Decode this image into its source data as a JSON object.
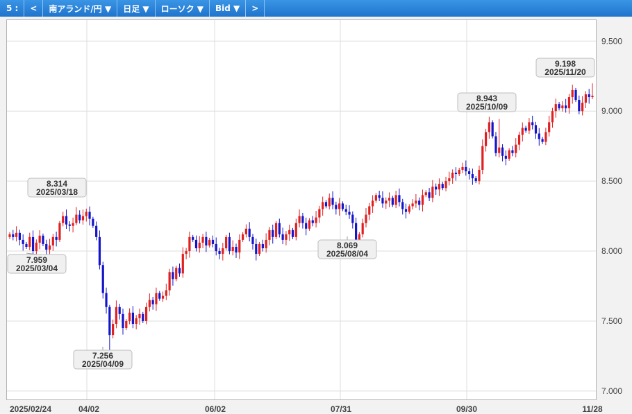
{
  "toolbar": {
    "timeframe": "5 :",
    "prev": "<",
    "pair": "南アランド/円 ▼",
    "period": "日足 ▼",
    "chart_type": "ローソク ▼",
    "price_type": "Bid ▼",
    "next": ">"
  },
  "colors": {
    "up": "#e02020",
    "down": "#1414c8",
    "toolbar": "#2a85dc",
    "grid": "#dddddd"
  },
  "chart_data": {
    "type": "candlestick",
    "title": "",
    "xlabel": "",
    "ylabel": "",
    "ylim": [
      6.94,
      9.65
    ],
    "y_ticks": [
      "7.000",
      "7.500",
      "8.000",
      "8.500",
      "9.000",
      "9.500"
    ],
    "x_ticks": [
      "2025/02/24",
      "04/02",
      "06/02",
      "07/31",
      "09/30",
      "11/28"
    ],
    "grid": true,
    "annotations": [
      {
        "value": "8.314",
        "date": "2025/03/18"
      },
      {
        "value": "7.959",
        "date": "2025/03/04"
      },
      {
        "value": "7.256",
        "date": "2025/04/09"
      },
      {
        "value": "8.069",
        "date": "2025/08/04"
      },
      {
        "value": "8.943",
        "date": "2025/10/09"
      },
      {
        "value": "9.198",
        "date": "2025/11/20"
      }
    ],
    "closes": [
      8.12,
      8.1,
      8.13,
      8.08,
      8.05,
      8.03,
      8.1,
      8.0,
      8.06,
      8.11,
      8.05,
      8.01,
      8.04,
      8.1,
      8.08,
      8.2,
      8.25,
      8.19,
      8.18,
      8.2,
      8.26,
      8.22,
      8.25,
      8.28,
      8.23,
      8.18,
      8.1,
      7.9,
      7.7,
      7.6,
      7.4,
      7.48,
      7.6,
      7.55,
      7.45,
      7.5,
      7.56,
      7.48,
      7.52,
      7.55,
      7.5,
      7.6,
      7.65,
      7.62,
      7.7,
      7.66,
      7.68,
      7.72,
      7.85,
      7.8,
      7.88,
      7.84,
      7.98,
      8.0,
      8.1,
      8.08,
      8.02,
      8.06,
      8.1,
      8.04,
      8.08,
      8.05,
      8.0,
      7.98,
      8.02,
      8.1,
      8.0,
      8.03,
      7.99,
      8.08,
      8.12,
      8.16,
      8.1,
      8.05,
      7.98,
      8.05,
      8.02,
      8.08,
      8.15,
      8.1,
      8.2,
      8.12,
      8.08,
      8.12,
      8.15,
      8.1,
      8.2,
      8.25,
      8.2,
      8.16,
      8.22,
      8.2,
      8.24,
      8.3,
      8.35,
      8.32,
      8.38,
      8.33,
      8.3,
      8.34,
      8.3,
      8.28,
      8.26,
      8.2,
      8.07,
      8.12,
      8.2,
      8.26,
      8.32,
      8.36,
      8.4,
      8.38,
      8.34,
      8.36,
      8.38,
      8.33,
      8.4,
      8.35,
      8.3,
      8.28,
      8.32,
      8.34,
      8.36,
      8.33,
      8.4,
      8.42,
      8.38,
      8.46,
      8.44,
      8.48,
      8.45,
      8.5,
      8.52,
      8.56,
      8.55,
      8.58,
      8.6,
      8.57,
      8.55,
      8.52,
      8.5,
      8.58,
      8.75,
      8.85,
      8.92,
      8.82,
      8.7,
      8.74,
      8.68,
      8.66,
      8.72,
      8.7,
      8.76,
      8.83,
      8.88,
      8.86,
      8.92,
      8.9,
      8.84,
      8.8,
      8.78,
      8.85,
      8.92,
      9.0,
      9.05,
      9.02,
      9.04,
      9.02,
      9.1,
      9.15,
      9.08,
      9.0,
      9.06,
      9.12,
      9.1,
      9.11
    ]
  }
}
